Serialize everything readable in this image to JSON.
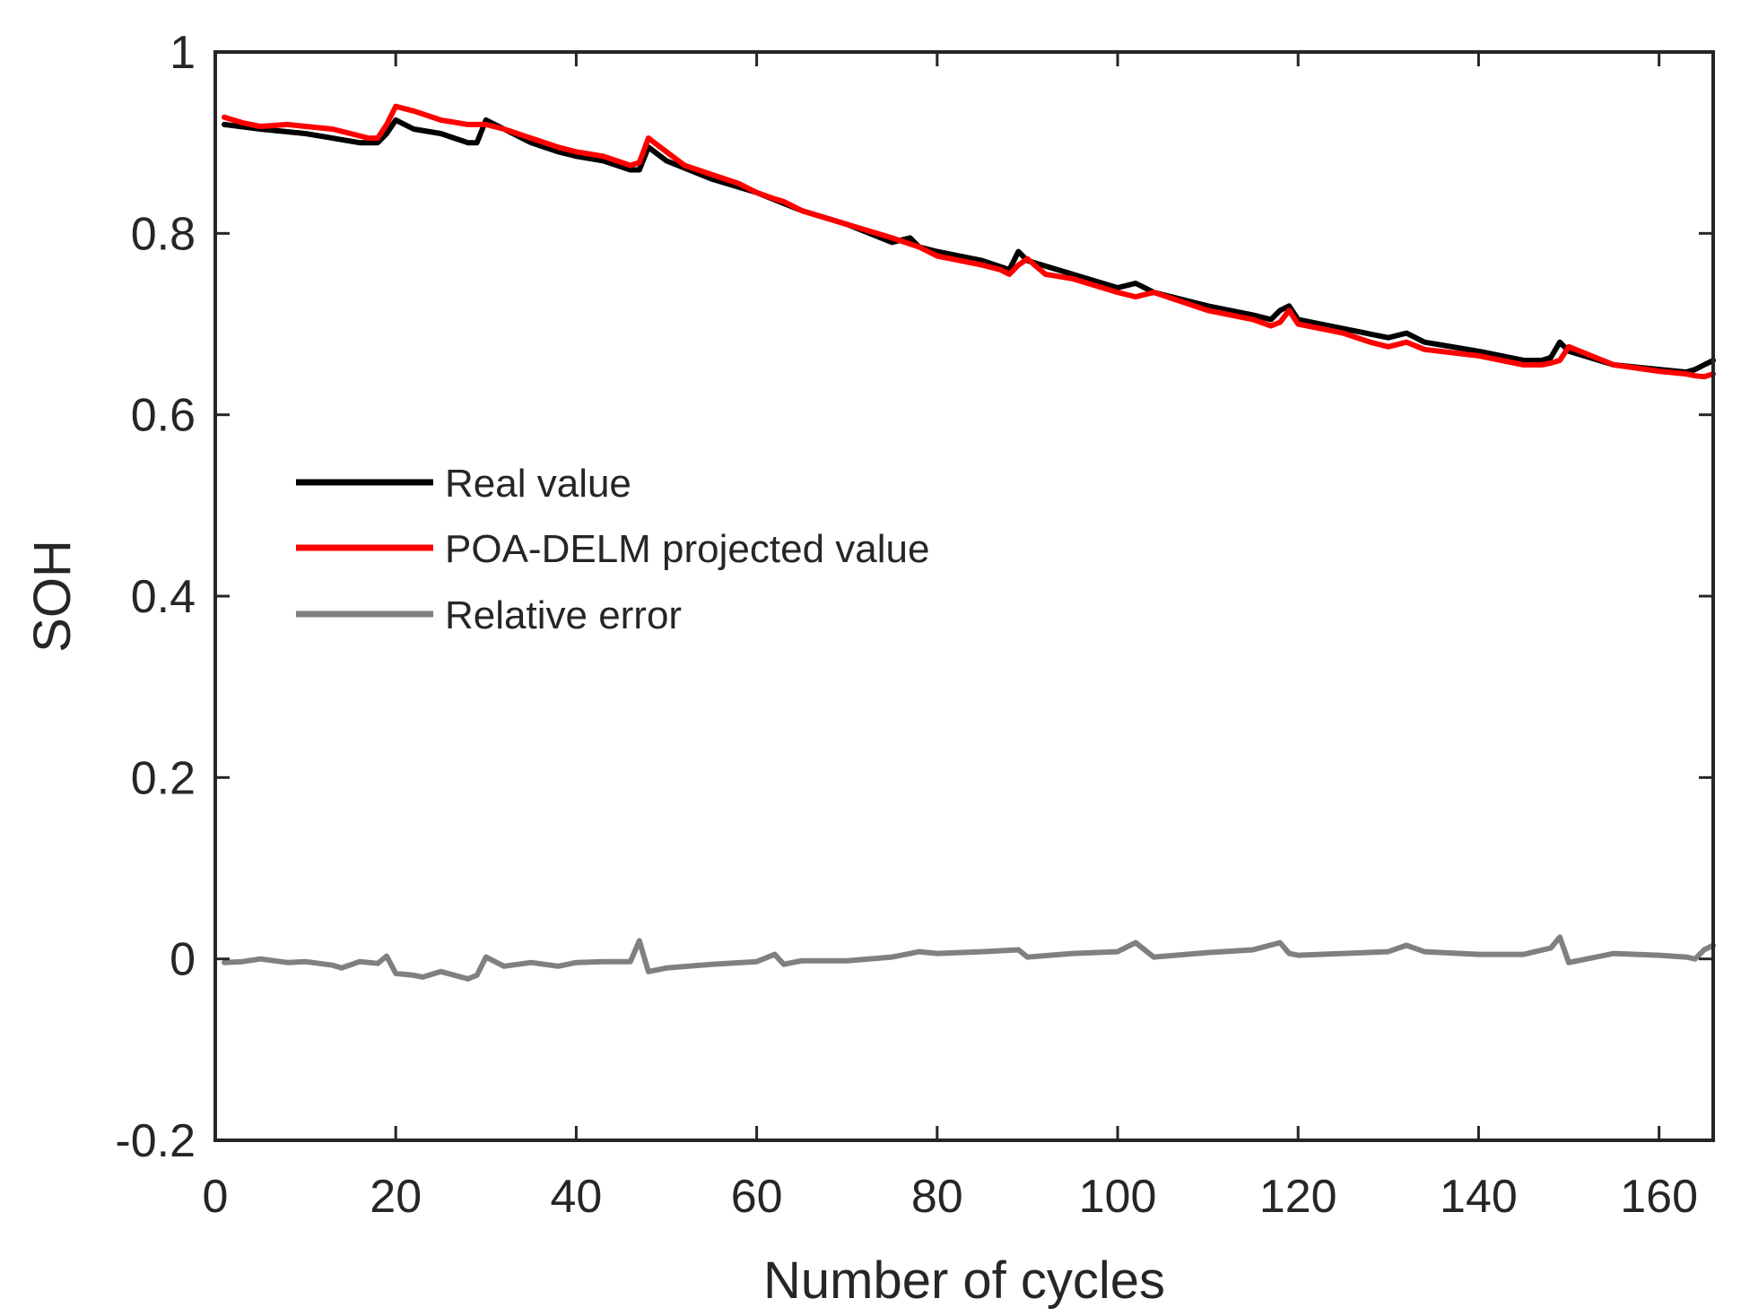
{
  "chart_data": {
    "type": "line",
    "title": "",
    "xlabel": "Number of cycles",
    "ylabel": "SOH",
    "xlim": [
      0,
      166
    ],
    "ylim": [
      -0.2,
      1
    ],
    "xticks": [
      0,
      20,
      40,
      60,
      80,
      100,
      120,
      140,
      160
    ],
    "yticks": [
      -0.2,
      0,
      0.2,
      0.4,
      0.6,
      0.8,
      1
    ],
    "xtick_labels": [
      "0",
      "20",
      "40",
      "60",
      "80",
      "100",
      "120",
      "140",
      "160"
    ],
    "ytick_labels": [
      "-0.2",
      "0",
      "0.2",
      "0.4",
      "0.6",
      "0.8",
      "1"
    ],
    "grid": false,
    "legend_position": "center-left",
    "series": [
      {
        "name": "Real value",
        "color": "#000000",
        "x": [
          1,
          5,
          10,
          13,
          16,
          18,
          19,
          20,
          22,
          25,
          28,
          29,
          30,
          32,
          35,
          38,
          40,
          43,
          46,
          47,
          48,
          50,
          55,
          60,
          65,
          70,
          75,
          77,
          78,
          80,
          85,
          88,
          89,
          90,
          95,
          100,
          102,
          104,
          110,
          115,
          117,
          118,
          119,
          120,
          125,
          130,
          132,
          134,
          140,
          145,
          147,
          148,
          149,
          150,
          155,
          160,
          163,
          164,
          165,
          166
        ],
        "values": [
          0.92,
          0.915,
          0.91,
          0.905,
          0.9,
          0.9,
          0.91,
          0.925,
          0.915,
          0.91,
          0.9,
          0.9,
          0.925,
          0.915,
          0.9,
          0.89,
          0.885,
          0.88,
          0.87,
          0.87,
          0.895,
          0.88,
          0.86,
          0.845,
          0.825,
          0.81,
          0.79,
          0.795,
          0.785,
          0.78,
          0.77,
          0.76,
          0.78,
          0.77,
          0.755,
          0.74,
          0.745,
          0.735,
          0.72,
          0.71,
          0.705,
          0.715,
          0.72,
          0.705,
          0.695,
          0.685,
          0.69,
          0.68,
          0.67,
          0.66,
          0.66,
          0.663,
          0.68,
          0.67,
          0.655,
          0.65,
          0.647,
          0.65,
          0.655,
          0.66
        ]
      },
      {
        "name": "POA-DELM projected value",
        "color": "#ff0000",
        "x": [
          1,
          3,
          5,
          8,
          10,
          13,
          15,
          17,
          18,
          19,
          20,
          22,
          25,
          28,
          30,
          32,
          35,
          38,
          40,
          43,
          46,
          47,
          48,
          50,
          52,
          55,
          58,
          60,
          62,
          63,
          65,
          70,
          75,
          78,
          80,
          85,
          87,
          88,
          89,
          90,
          92,
          95,
          100,
          102,
          104,
          110,
          115,
          117,
          118,
          119,
          120,
          125,
          128,
          130,
          132,
          134,
          140,
          145,
          147,
          148,
          149,
          150,
          155,
          160,
          163,
          164,
          165,
          166
        ],
        "values": [
          0.928,
          0.922,
          0.918,
          0.92,
          0.918,
          0.915,
          0.91,
          0.905,
          0.905,
          0.92,
          0.94,
          0.935,
          0.925,
          0.92,
          0.92,
          0.915,
          0.905,
          0.895,
          0.89,
          0.885,
          0.875,
          0.878,
          0.905,
          0.89,
          0.875,
          0.865,
          0.855,
          0.845,
          0.838,
          0.835,
          0.825,
          0.81,
          0.795,
          0.785,
          0.775,
          0.765,
          0.76,
          0.755,
          0.765,
          0.772,
          0.755,
          0.75,
          0.735,
          0.73,
          0.735,
          0.715,
          0.705,
          0.698,
          0.702,
          0.715,
          0.7,
          0.69,
          0.68,
          0.675,
          0.68,
          0.672,
          0.665,
          0.655,
          0.655,
          0.657,
          0.66,
          0.675,
          0.655,
          0.648,
          0.645,
          0.643,
          0.642,
          0.645
        ]
      },
      {
        "name": "Relative error",
        "color": "#808080",
        "x": [
          1,
          3,
          5,
          8,
          10,
          13,
          14,
          16,
          18,
          19,
          20,
          22,
          23,
          25,
          28,
          29,
          30,
          32,
          35,
          38,
          40,
          43,
          46,
          47,
          48,
          50,
          55,
          60,
          62,
          63,
          65,
          70,
          75,
          78,
          80,
          85,
          89,
          90,
          95,
          100,
          102,
          104,
          110,
          115,
          118,
          119,
          120,
          125,
          130,
          132,
          134,
          140,
          145,
          148,
          149,
          150,
          155,
          160,
          163,
          164,
          165,
          166
        ],
        "values": [
          -0.004,
          -0.003,
          0,
          -0.004,
          -0.003,
          -0.007,
          -0.01,
          -0.003,
          -0.005,
          0.003,
          -0.016,
          -0.018,
          -0.02,
          -0.014,
          -0.022,
          -0.018,
          0.002,
          -0.008,
          -0.004,
          -0.008,
          -0.004,
          -0.003,
          -0.003,
          0.02,
          -0.014,
          -0.01,
          -0.006,
          -0.003,
          0.005,
          -0.006,
          -0.002,
          -0.002,
          0.002,
          0.008,
          0.006,
          0.008,
          0.01,
          0.002,
          0.006,
          0.008,
          0.018,
          0.002,
          0.007,
          0.01,
          0.018,
          0.006,
          0.004,
          0.006,
          0.008,
          0.015,
          0.008,
          0.005,
          0.005,
          0.012,
          0.024,
          -0.004,
          0.006,
          0.004,
          0.002,
          0,
          0.01,
          0.015
        ]
      }
    ]
  }
}
